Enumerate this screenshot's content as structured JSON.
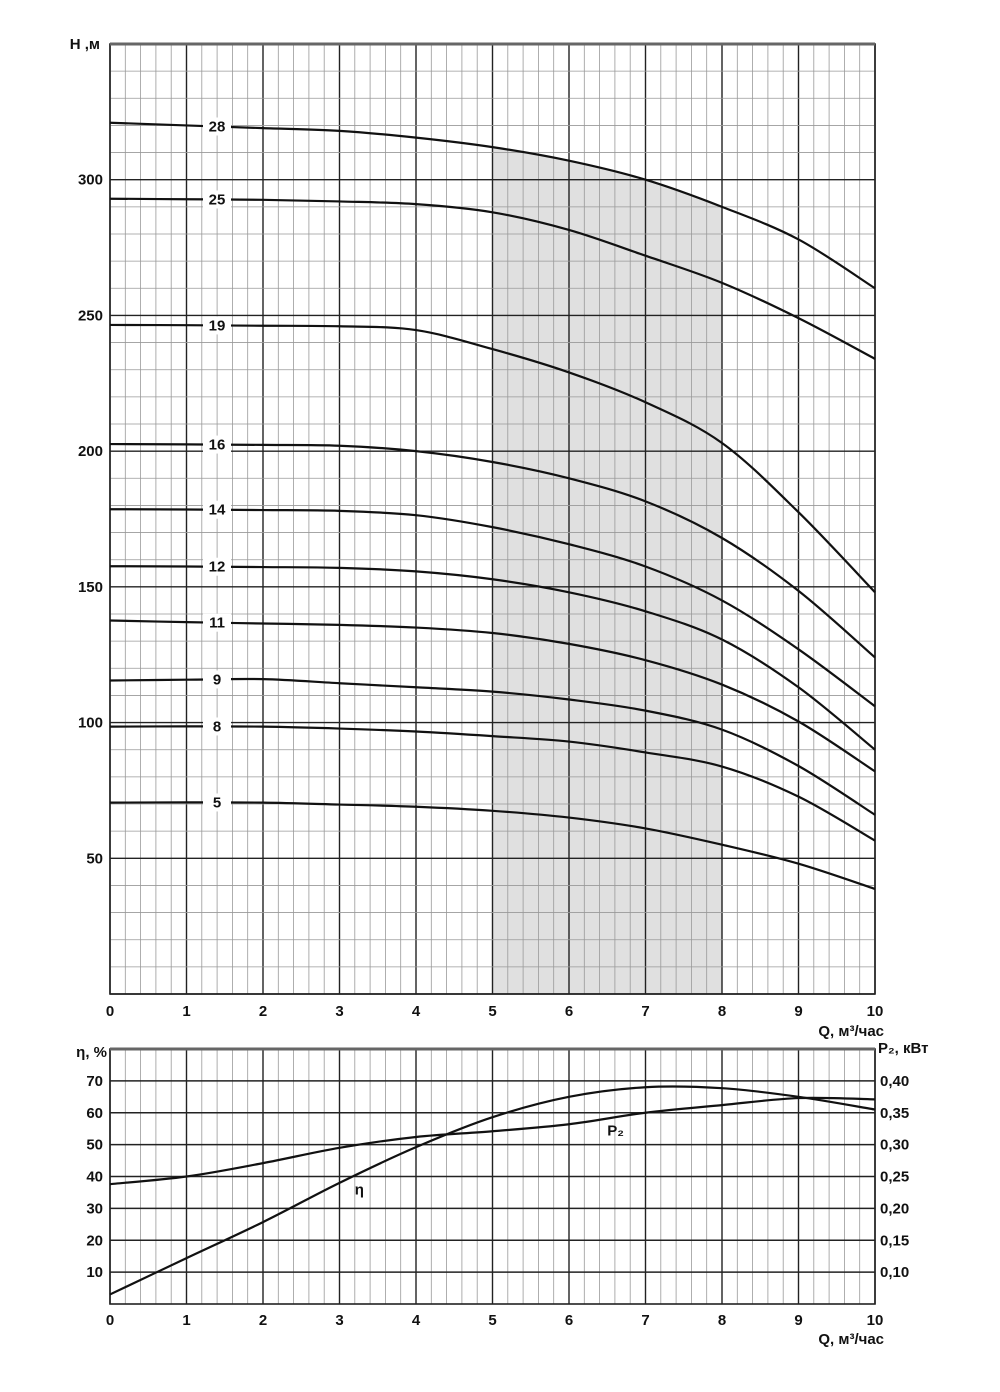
{
  "chart_data": [
    {
      "type": "line",
      "title": "",
      "xlabel": "Q, м³/час",
      "ylabel": "H ,м",
      "xlim": [
        0,
        10
      ],
      "ylim": [
        0,
        350
      ],
      "x_ticks": [
        "0",
        "1",
        "2",
        "3",
        "4",
        "5",
        "6",
        "7",
        "8",
        "9",
        "10"
      ],
      "y_ticks": [
        {
          "value": 50,
          "label": "50"
        },
        {
          "value": 100,
          "label": "100"
        },
        {
          "value": 150,
          "label": "150"
        },
        {
          "value": 200,
          "label": "200"
        },
        {
          "value": 250,
          "label": "250"
        },
        {
          "value": 300,
          "label": "300"
        }
      ],
      "grid": true,
      "shaded_range": {
        "x": [
          5,
          8
        ],
        "color": "#e0e0e0"
      },
      "x": [
        0,
        1,
        2,
        3,
        4,
        5,
        6,
        7,
        8,
        9,
        10
      ],
      "series": [
        {
          "name": "28",
          "values": [
            321,
            320,
            319,
            318,
            315.5,
            312,
            307,
            300,
            290,
            278,
            260
          ]
        },
        {
          "name": "25",
          "values": [
            293,
            292.8,
            292.6,
            292,
            291,
            288,
            281.5,
            272,
            262,
            249,
            234
          ]
        },
        {
          "name": "19",
          "values": [
            246.5,
            246.4,
            246.2,
            246,
            244.6,
            237.6,
            229,
            218,
            203,
            177.5,
            148
          ]
        },
        {
          "name": "16",
          "values": [
            202.6,
            202.5,
            202.3,
            202,
            200,
            196,
            190,
            181.5,
            168,
            148.5,
            124
          ]
        },
        {
          "name": "14",
          "values": [
            178.6,
            178.5,
            178.3,
            178,
            176.4,
            172,
            165.7,
            157.5,
            145,
            127,
            106
          ]
        },
        {
          "name": "12",
          "values": [
            157.6,
            157.5,
            157.3,
            157,
            155.7,
            152.8,
            148,
            141,
            130.6,
            113,
            90
          ]
        },
        {
          "name": "11",
          "values": [
            137.6,
            137,
            136.5,
            136,
            135,
            133,
            129,
            123,
            114,
            100.4,
            82
          ]
        },
        {
          "name": "9",
          "values": [
            115.5,
            115.8,
            116,
            114.5,
            113,
            111.4,
            108.5,
            104.4,
            97.4,
            84,
            66
          ]
        },
        {
          "name": "8",
          "values": [
            98.5,
            98.6,
            98.5,
            97.8,
            96.7,
            95,
            93,
            89,
            83.8,
            72.7,
            56.5
          ]
        },
        {
          "name": "5",
          "values": [
            70.5,
            70.6,
            70.5,
            69.8,
            69,
            67.5,
            65,
            61,
            55,
            48,
            38.7
          ]
        }
      ]
    },
    {
      "type": "line",
      "xlabel": "Q, м³/час",
      "ylabel": "η, %",
      "ylabel_right": "P₂, кВт",
      "xlim": [
        0,
        10
      ],
      "ylim": [
        0,
        80
      ],
      "ylim_right": [
        0.05,
        0.45
      ],
      "x_ticks": [
        "0",
        "1",
        "2",
        "3",
        "4",
        "5",
        "6",
        "7",
        "8",
        "9",
        "10"
      ],
      "y_ticks": [
        {
          "value": 10,
          "label": "10"
        },
        {
          "value": 20,
          "label": "20"
        },
        {
          "value": 30,
          "label": "30"
        },
        {
          "value": 40,
          "label": "40"
        },
        {
          "value": 50,
          "label": "50"
        },
        {
          "value": 60,
          "label": "60"
        },
        {
          "value": 70,
          "label": "70"
        }
      ],
      "y_ticks_right": [
        {
          "value": 0.1,
          "label": "0,10"
        },
        {
          "value": 0.15,
          "label": "0,15"
        },
        {
          "value": 0.2,
          "label": "0,20"
        },
        {
          "value": 0.25,
          "label": "0,25"
        },
        {
          "value": 0.3,
          "label": "0,30"
        },
        {
          "value": 0.35,
          "label": "0,35"
        },
        {
          "value": 0.4,
          "label": "0,40"
        }
      ],
      "grid": true,
      "x": [
        0,
        1,
        2,
        3,
        4,
        5,
        6,
        7,
        8,
        9,
        10
      ],
      "series": [
        {
          "name": "η",
          "axis": "left",
          "values": [
            3,
            14.4,
            25.7,
            38,
            49.2,
            58.6,
            65,
            68,
            67.7,
            65,
            61
          ],
          "label_at": [
            3.2,
            36
          ]
        },
        {
          "name": "P₂",
          "axis": "right",
          "values": [
            0.238,
            0.25,
            0.271,
            0.295,
            0.312,
            0.321,
            0.332,
            0.35,
            0.362,
            0.373,
            0.371
          ],
          "label_at": [
            6.5,
            0.322
          ]
        }
      ]
    }
  ]
}
